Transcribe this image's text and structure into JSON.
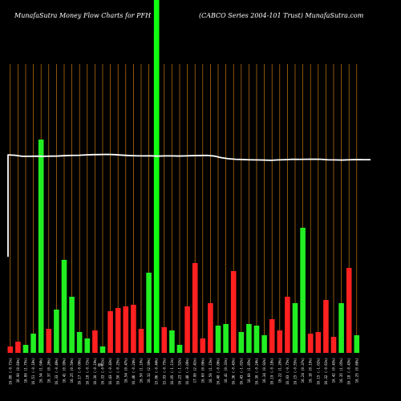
{
  "chart_data": {
    "type": "bar",
    "title_left": "MunafaSutra  Money Flow  Charts for PFH",
    "title_right": "(CABCO Series 2004-101 Trust) MunafaSutra.com",
    "categories": [
      "16.80 (-0.71%)",
      "16.90 (0.60%)",
      "16.80 (1.75%)",
      "16.51 (-0.18%)",
      "16.54 (1.04%)",
      "16.37 (0.26%)",
      "16.33 (-0.49%)",
      "16.41 (0.99%)",
      "16.25 (0.50%)",
      "16.17 (-0.06%)",
      "16.18 (-0.72%)",
      "16.30 (-0.19%)",
      "16.33 (-0.61%)",
      "16.43 (-0.43%)",
      "16.50 (-0.25%)",
      "16.54 (0.47%)",
      "16.46 (-0.24%)",
      "16.50 (1.10%)",
      "16.32 (2.90%)",
      "15.86 (-0.44%)",
      "15.93 (-0.75%)",
      "16.05 (-1.11%)",
      "16.23 (-1.52%)",
      "16.48 (-3.06%)",
      "17.00 (2.41%)",
      "16.60 (0.06%)",
      "16.59 (1.15%)",
      "16.40 (-0.06%)",
      "16.41 (0.31%)",
      "16.36 (-0.43%)",
      "16.43 (-1.02%)",
      "16.60 (1.85%)",
      "16.30 (-0.24%)",
      "16.34 (0.92%)",
      "16.19 (-0.18%)",
      "16.22 (1.20%)",
      "16.03 (-0.75%)",
      "16.15 (-0.55%)",
      "16.24 (0.37%)",
      "16.18 (0.19%)",
      "16.15 (-1.02%)",
      "16.32 (-0.61%)",
      "16.42 (0.43%)",
      "16.35 (1.05%)",
      "16.18 (-0.43%)",
      "16.25 (0.68%)"
    ],
    "extra_label": "0%",
    "series": [
      {
        "values": [
          4,
          7,
          5,
          12,
          133,
          15,
          27,
          58,
          35,
          13,
          9,
          14,
          4,
          26,
          28,
          29,
          30,
          15,
          50,
          200,
          16,
          14,
          5,
          29,
          56,
          9,
          31,
          17,
          18,
          51,
          13,
          18,
          17,
          11,
          21,
          14,
          35,
          31,
          78,
          12,
          13,
          33,
          10,
          31,
          53,
          11
        ],
        "colors": [
          "#ff2020",
          "#ff2020",
          "#22ee22",
          "#22ee22",
          "#22ee22",
          "#ff2020",
          "#22ee22",
          "#22ee22",
          "#22ee22",
          "#22ee22",
          "#22ee22",
          "#ff2020",
          "#22ee22",
          "#ff2020",
          "#ff2020",
          "#ff2020",
          "#ff2020",
          "#ff2020",
          "#22ee22",
          "#22ee22",
          "#ff2020",
          "#22ee22",
          "#22ee22",
          "#ff2020",
          "#ff2020",
          "#ff2020",
          "#ff2020",
          "#22ee22",
          "#22ee22",
          "#ff2020",
          "#22ee22",
          "#22ee22",
          "#22ee22",
          "#22ee22",
          "#ff2020",
          "#ff2020",
          "#ff2020",
          "#22ee22",
          "#22ee22",
          "#ff2020",
          "#ff2020",
          "#ff2020",
          "#ff2020",
          "#22ee22",
          "#ff2020",
          "#22ee22"
        ]
      }
    ],
    "price_line": [
      18.31,
      18.28,
      18.2,
      18.2,
      18.21,
      18.2,
      18.21,
      18.22,
      18.25,
      18.27,
      18.28,
      18.31,
      18.33,
      18.34,
      18.35,
      18.33,
      18.29,
      18.26,
      18.24,
      18.23,
      18.24,
      18.21,
      18.23,
      18.23,
      18.22,
      18.23,
      18.25,
      18.26,
      18.27,
      18.22,
      18.09,
      18.01,
      17.96,
      17.94,
      17.92,
      17.91,
      17.9,
      17.88,
      17.91,
      17.93,
      17.96,
      17.95,
      17.96,
      17.97,
      17.96,
      17.92,
      17.91,
      17.9,
      17.92,
      17.94,
      17.93,
      17.93
    ],
    "price_start": 10.2,
    "ylim": [
      0,
      200
    ],
    "price_ylim": [
      0,
      30
    ],
    "colors": {
      "background": "#000000",
      "up": "#22ee22",
      "down": "#ff2020",
      "gridline": "#c87810",
      "price_line": "#ffffff",
      "highlight_bar": "#11ff11"
    }
  }
}
